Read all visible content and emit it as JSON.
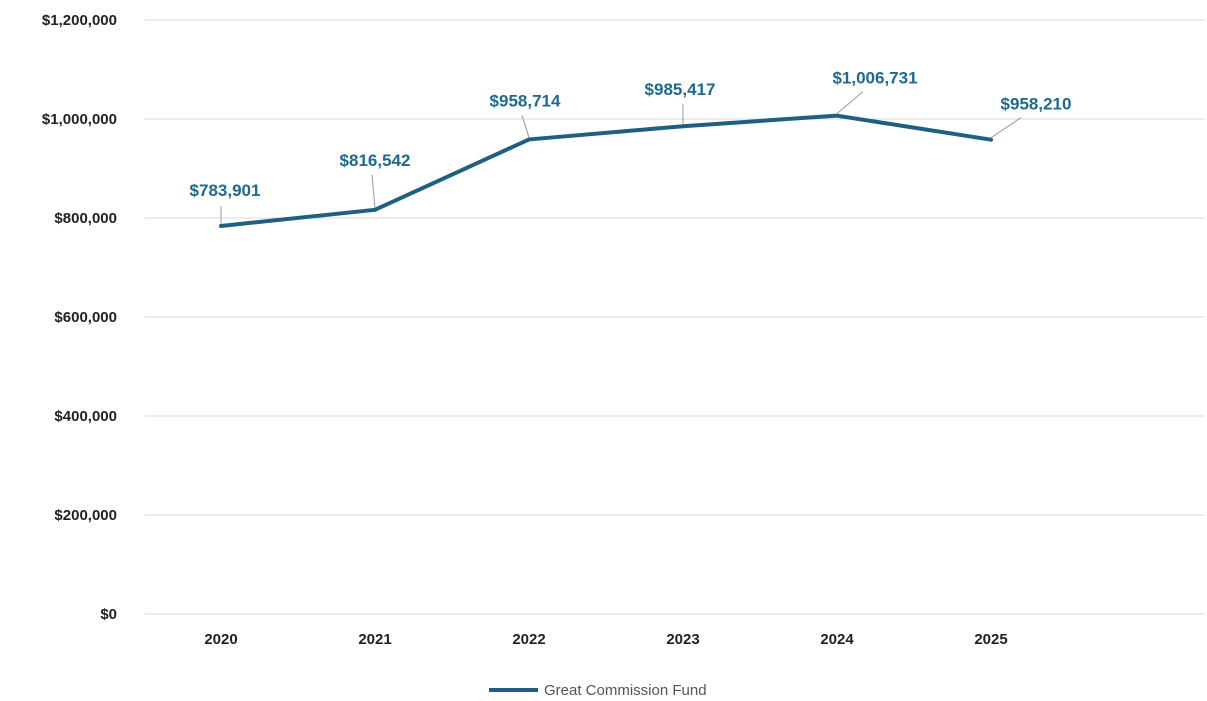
{
  "chart_data": {
    "type": "line",
    "categories": [
      "2020",
      "2021",
      "2022",
      "2023",
      "2024",
      "2025"
    ],
    "series": [
      {
        "name": "Great Commission Fund",
        "values": [
          783901,
          816542,
          958714,
          985417,
          1006731,
          958210
        ],
        "data_labels": [
          "$783,901",
          "$816,542",
          "$958,714",
          "$985,417",
          "$1,006,731",
          "$958,210"
        ]
      }
    ],
    "y_ticks": [
      0,
      200000,
      400000,
      600000,
      800000,
      1000000,
      1200000
    ],
    "y_tick_labels": [
      "$0",
      "$200,000",
      "$400,000",
      "$600,000",
      "$800,000",
      "$1,000,000",
      "$1,200,000"
    ],
    "ylim": [
      0,
      1200000
    ],
    "grid": true,
    "legend_position": "bottom",
    "title": "",
    "xlabel": "",
    "ylabel": "",
    "colors": {
      "line": "#1e5f82",
      "label": "#1e6a8d",
      "grid": "#d9d9d9",
      "leader": "#999999"
    }
  }
}
